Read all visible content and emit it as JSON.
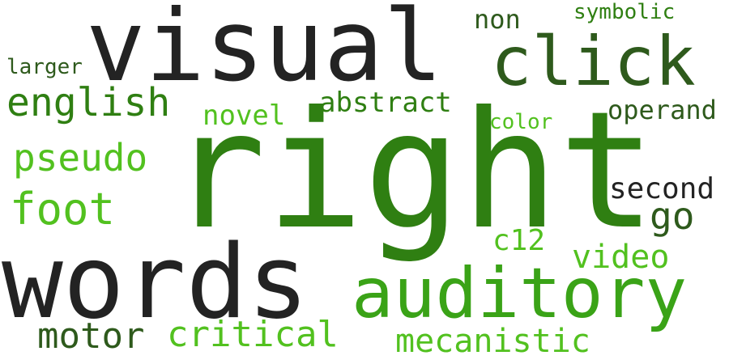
{
  "palette": {
    "dark_gray": "#232323",
    "forest_green": "#2e5a1c",
    "mid_green": "#2f7f12",
    "grass_green": "#3aa317",
    "light_green": "#52c11f"
  },
  "words": {
    "right": "right",
    "words": "words",
    "visual": "visual",
    "auditory": "auditory",
    "click": "click",
    "english": "english",
    "pseudo": "pseudo",
    "foot": "foot",
    "motor": "motor",
    "critical": "critical",
    "mecanistic": "mecanistic",
    "abstract": "abstract",
    "novel": "novel",
    "color": "color",
    "operand": "operand",
    "second": "second",
    "go": "go",
    "video": "video",
    "c12": "c12",
    "non": "non",
    "symbolic": "symbolic",
    "larger": "larger"
  }
}
